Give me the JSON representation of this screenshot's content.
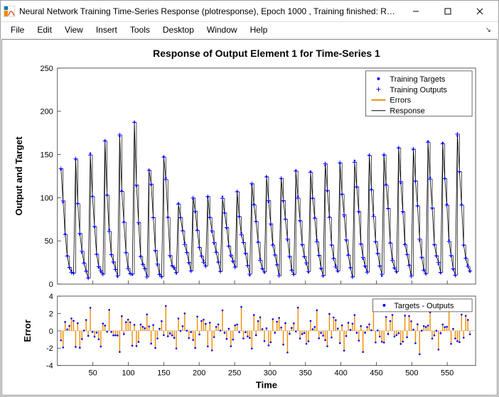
{
  "window": {
    "title": "Neural Network Training Time-Series Response (plotresponse), Epoch 1000 , Training finished: Reac..."
  },
  "menu": {
    "file": "File",
    "edit": "Edit",
    "view": "View",
    "insert": "Insert",
    "tools": "Tools",
    "desktop": "Desktop",
    "window": "Window",
    "help": "Help"
  },
  "chart": {
    "title": "Response of Output Element 1 for Time-Series 1",
    "xlabel": "Time",
    "top": {
      "ylabel": "Output and Target",
      "ylim": [
        0,
        250
      ],
      "yticks": [
        0,
        50,
        100,
        150,
        200,
        250
      ],
      "legend": {
        "targets": "Training Targets",
        "outputs": "Training Outputs",
        "errors": "Errors",
        "response": "Response"
      }
    },
    "bottom": {
      "ylabel": "Error",
      "ylim": [
        -4,
        4
      ],
      "yticks": [
        -4,
        -2,
        0,
        2,
        4
      ],
      "legend": {
        "diff": "Targets - Outputs"
      }
    },
    "xlim": [
      0,
      590
    ],
    "xticks": [
      50,
      100,
      150,
      200,
      250,
      300,
      350,
      400,
      450,
      500,
      550
    ],
    "colors": {
      "targets_dot": "#0000ff",
      "outputs_plus": "#0000ff",
      "errors_line": "#ed8b00",
      "response_line": "#000000",
      "background": "#ffffff",
      "axis": "#333333"
    },
    "marker_sizes": {
      "dot_r": 1.3,
      "plus_half": 3
    },
    "line_widths": {
      "response": 0.8,
      "errors": 1.4
    }
  }
}
